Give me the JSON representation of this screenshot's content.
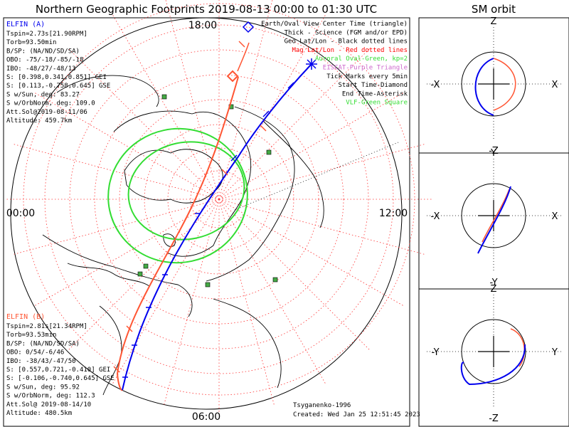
{
  "title": "Northern Geographic Footprints 2019-08-13 00:00 to 01:30 UTC",
  "orbit_title": "SM orbit",
  "time_labels": {
    "top": "18:00",
    "left": "00:00",
    "right": "12:00",
    "bottom": "06:00"
  },
  "sat_a": {
    "name": "ELFIN (A)",
    "lines": [
      "Tspin=2.73s[21.90RPM]",
      "Torb=93.50min",
      "B/SP: (NA/ND/SD/SA)",
      "OBO: -75/-18/-85/-18",
      "IBO: -48/27/-48/13",
      "S: [0.398,0.341,0.851] GEI",
      "S: [0.113,-0.758,0.645] GSE",
      "S w/Sun, deg: 83.27",
      "S w/OrbNorm, deg: 109.0",
      "Att.Sol@2019-08-11/06",
      "Altitude: 459.7km"
    ]
  },
  "sat_b": {
    "name": "ELFIN (B)",
    "lines": [
      "Tspin=2.81s[21.34RPM]",
      "Torb=93.53min",
      "B/SP: (NA/ND/SD/SA)",
      "OBO: 0/54/-6/46",
      "IBO: -38/43/-47/50",
      "S: [0.557,0.721,-0.410] GEI",
      "S: [-0.106,-0.740,0.645] GSE",
      "S w/Sun, deg: 95.92",
      "S w/OrbNorm, deg: 112.3",
      "Att.Sol@ 2019-08-14/10",
      "Altitude: 480.5km"
    ]
  },
  "legend": [
    {
      "text": "Earth/Oval View Center Time (triangle)",
      "color": "#000000"
    },
    {
      "text": "Thick - Science (FGM and/or EPD)",
      "color": "#000000"
    },
    {
      "text": "Geo Lat/Lon - Black dotted lines",
      "color": "#000000"
    },
    {
      "text": "Mag Lat/Lon - Red dotted lines",
      "color": "#ff0000"
    },
    {
      "text": "Auroral Oval-Green, kp=2",
      "color": "#33dd33"
    },
    {
      "text": "EISCAT-Purple Triangle",
      "color": "#cc66cc"
    },
    {
      "text": "Tick Marks every 5min",
      "color": "#000000"
    },
    {
      "text": "Start Time-Diamond",
      "color": "#000000"
    },
    {
      "text": "End Time-Asterisk",
      "color": "#000000"
    },
    {
      "text": "VLF-Green Square",
      "color": "#33dd33"
    }
  ],
  "credits": {
    "author": "Tsyganenko-1996",
    "created": "Created: Wed Jan 25 12:51:45 2023"
  },
  "orbit_panels": [
    {
      "top": "Z",
      "bottom": "-Z",
      "left": "-X",
      "right": "X"
    },
    {
      "top": "Y",
      "bottom": "-Y",
      "left": "-X",
      "right": "X"
    },
    {
      "top": "Z",
      "bottom": "-Z",
      "left": "-Y",
      "right": "Y"
    }
  ],
  "colors": {
    "sat_a": "#0000ee",
    "sat_b": "#ff5533",
    "oval": "#33dd33",
    "grid": "#ff3333"
  }
}
